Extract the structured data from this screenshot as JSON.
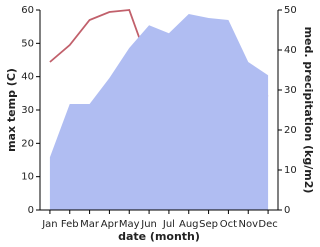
{
  "chart_data": {
    "type": "line_area",
    "x_label": "date (month)",
    "y_label": "max temp (C)",
    "y2_label": "med. precipitation (kg/m2)",
    "categories": [
      "Jan",
      "Feb",
      "Mar",
      "Apr",
      "May",
      "Jun",
      "Jul",
      "Aug",
      "Sep",
      "Oct",
      "Nov",
      "Dec"
    ],
    "series": [
      {
        "name": "max temp",
        "color": "#c1606b",
        "type": "line",
        "values": [
          44.4,
          49.5,
          57,
          59.4,
          60,
          43.5,
          40.5,
          36.6,
          36.6,
          35.7,
          34.5,
          34.2
        ]
      },
      {
        "name": "med. precipitation",
        "color": "#b0bdf2",
        "type": "area",
        "axis": "y2",
        "values": [
          13.2,
          26.5,
          26.5,
          33,
          40.5,
          46.2,
          44.2,
          49,
          48,
          47.5,
          37,
          33.7
        ]
      }
    ],
    "ylim": [
      0,
      60
    ],
    "yticks": [
      0,
      10,
      20,
      30,
      40,
      50,
      60
    ],
    "y2lim": [
      0,
      50
    ],
    "y2ticks": [
      0,
      10,
      20,
      30,
      40,
      50
    ]
  }
}
